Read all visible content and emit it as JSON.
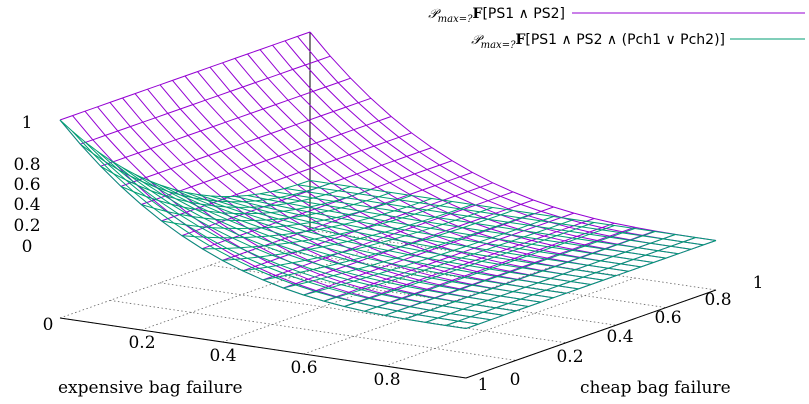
{
  "chart_data": {
    "type": "surface3d",
    "x_axis": {
      "label": "expensive bag failure",
      "range": [
        0,
        1
      ],
      "tick_labels": [
        "0",
        "0.2",
        "0.4",
        "0.6",
        "0.8",
        "1"
      ]
    },
    "y_axis": {
      "label": "cheap bag failure",
      "range": [
        0,
        1
      ],
      "tick_labels": [
        "0",
        "0.2",
        "0.4",
        "0.6",
        "0.8",
        "1"
      ]
    },
    "z_axis": {
      "range": [
        0,
        1
      ],
      "tick_labels": [
        "0",
        "0.2",
        "0.4",
        "0.6",
        "0.8",
        "1"
      ]
    },
    "grid": true,
    "legend_placement": "top-right",
    "series": [
      {
        "name": "P_{max=?} F[PS1 ∧ PS2]",
        "legend_parts": {
          "prefix": "F",
          "rest": "[PS1 ∧ PS2]"
        },
        "color": "#9400d3",
        "sample_values": [
          {
            "expensive": 0,
            "cheap": 0,
            "z": 1.0
          },
          {
            "expensive": 0,
            "cheap": 1,
            "z": 1.0
          },
          {
            "expensive": 1,
            "cheap": 0,
            "z": 0.25
          },
          {
            "expensive": 1,
            "cheap": 1,
            "z": 0.25
          },
          {
            "expensive": 0.5,
            "cheap": 0.5,
            "z": 0.45
          }
        ]
      },
      {
        "name": "P_{max=?} F[PS1 ∧ PS2 ∧ (Pch1 ∨ Pch2)]",
        "legend_parts": {
          "prefix": "F",
          "rest": "[PS1 ∧ PS2 ∧ (Pch1 ∨ Pch2)]"
        },
        "color": "#009e73",
        "sample_values": [
          {
            "expensive": 0,
            "cheap": 0,
            "z": 1.0
          },
          {
            "expensive": 0,
            "cheap": 1,
            "z": 0.25
          },
          {
            "expensive": 1,
            "cheap": 0,
            "z": 0.25
          },
          {
            "expensive": 1,
            "cheap": 1,
            "z": 0.25
          },
          {
            "expensive": 0.5,
            "cheap": 0.5,
            "z": 0.4
          }
        ]
      }
    ]
  }
}
